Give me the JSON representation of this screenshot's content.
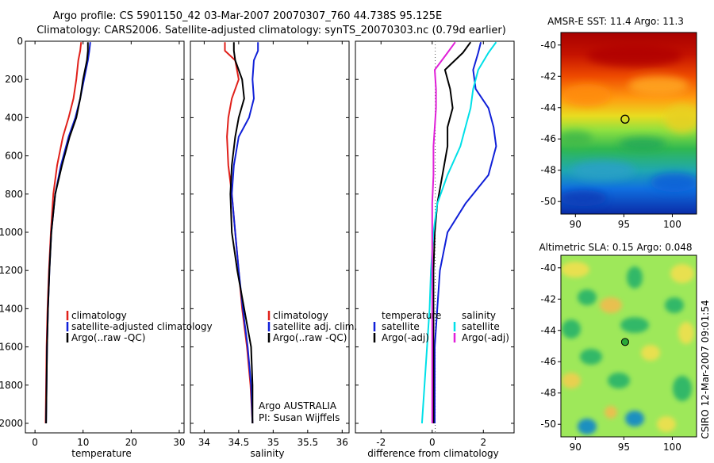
{
  "header": {
    "line1": "Argo profile: CS 5901150_42 03-Mar-2007 20070307_760 44.738S 95.125E",
    "line2": "Climatology: CARS2006. Satellite-adjusted climatology: synTS_20070303.nc (0.79d earlier)"
  },
  "footer": {
    "vertical_label": "CSIRO 12-Mar-2007 09:01:54"
  },
  "colors": {
    "red": "#e0201a",
    "blue": "#1020d8",
    "black": "#000000",
    "cyan": "#00e0e8",
    "magenta": "#e020d8"
  },
  "chart_data": [
    {
      "type": "line",
      "title": "",
      "xlabel": "temperature",
      "ylabel": "",
      "xlim": [
        -2,
        31
      ],
      "ylim": [
        2050,
        0
      ],
      "xticks": [
        0,
        10,
        20,
        30
      ],
      "yticks": [
        0,
        200,
        400,
        600,
        800,
        1000,
        1200,
        1400,
        1600,
        1800,
        2000
      ],
      "legend": [
        "climatology",
        "satellite-adjusted climatology",
        "Argo(..raw -QC)"
      ],
      "legend_colors": [
        "#e0201a",
        "#1020d8",
        "#000000"
      ],
      "legend_position": "lower-right",
      "annotation": [],
      "series": [
        {
          "color": "#e0201a",
          "x": [
            9.6,
            9.4,
            9.0,
            8.6,
            8.0,
            7.0,
            5.8,
            4.6,
            3.8,
            3.3,
            2.9,
            2.6,
            2.4,
            2.3,
            2.2
          ],
          "y": [
            5,
            50,
            100,
            200,
            300,
            400,
            500,
            650,
            800,
            1000,
            1200,
            1400,
            1600,
            1800,
            2000
          ]
        },
        {
          "color": "#1020d8",
          "x": [
            11.5,
            11.3,
            11.0,
            10.2,
            9.4,
            8.4,
            7.0,
            5.4,
            4.2,
            3.4,
            3.0,
            2.7,
            2.5,
            2.4,
            2.3
          ],
          "y": [
            5,
            50,
            100,
            200,
            300,
            400,
            500,
            650,
            800,
            1000,
            1200,
            1400,
            1600,
            1800,
            2000
          ]
        },
        {
          "color": "#000000",
          "x": [
            11.0,
            11.0,
            10.8,
            10.0,
            9.4,
            8.6,
            7.2,
            5.6,
            4.2,
            3.4,
            3.0,
            2.7,
            2.5,
            2.4,
            2.3
          ],
          "y": [
            5,
            50,
            100,
            200,
            300,
            400,
            500,
            650,
            800,
            1000,
            1200,
            1400,
            1600,
            1800,
            2000
          ]
        }
      ]
    },
    {
      "type": "line",
      "title": "",
      "xlabel": "salinity",
      "ylabel": "",
      "xlim": [
        33.8,
        36.1
      ],
      "ylim": [
        2050,
        0
      ],
      "xticks": [
        34,
        34.5,
        35,
        35.5,
        36
      ],
      "yticks": [
        0,
        200,
        400,
        600,
        800,
        1000,
        1200,
        1400,
        1600,
        1800,
        2000
      ],
      "legend": [
        "climatology",
        "satellite adj. clim.",
        "Argo(..raw -QC)"
      ],
      "legend_colors": [
        "#e0201a",
        "#1020d8",
        "#000000"
      ],
      "legend_position": "lower-right",
      "annotation": [
        "Argo AUSTRALIA",
        "PI: Susan Wijffels"
      ],
      "series": [
        {
          "color": "#e0201a",
          "x": [
            34.3,
            34.3,
            34.45,
            34.5,
            34.4,
            34.35,
            34.33,
            34.35,
            34.4,
            34.45,
            34.5,
            34.55,
            34.62,
            34.67,
            34.7
          ],
          "y": [
            5,
            50,
            100,
            200,
            300,
            400,
            500,
            650,
            800,
            1000,
            1200,
            1400,
            1600,
            1800,
            2000
          ]
        },
        {
          "color": "#1020d8",
          "x": [
            34.78,
            34.78,
            34.72,
            34.7,
            34.72,
            34.65,
            34.5,
            34.43,
            34.4,
            34.45,
            34.5,
            34.56,
            34.63,
            34.68,
            34.7
          ],
          "y": [
            5,
            50,
            100,
            200,
            300,
            400,
            500,
            650,
            800,
            1000,
            1200,
            1400,
            1600,
            1800,
            2000
          ]
        },
        {
          "color": "#000000",
          "x": [
            34.43,
            34.43,
            34.45,
            34.55,
            34.58,
            34.5,
            34.45,
            34.4,
            34.38,
            34.4,
            34.48,
            34.58,
            34.68,
            34.7,
            34.7
          ],
          "y": [
            5,
            50,
            100,
            200,
            300,
            400,
            500,
            650,
            800,
            1000,
            1200,
            1400,
            1600,
            1800,
            2000
          ]
        }
      ]
    },
    {
      "type": "line",
      "title": "",
      "xlabel": "difference from climatology",
      "ylabel": "",
      "xlim": [
        -3,
        3.2
      ],
      "ylim": [
        2050,
        0
      ],
      "xticks": [
        -2,
        0,
        2
      ],
      "yticks": [
        0,
        200,
        400,
        600,
        800,
        1000,
        1200,
        1400,
        1600,
        1800,
        2000
      ],
      "legend": [
        "temperature",
        "satellite",
        "Argo(-adj)",
        "salinity",
        "satellite",
        "Argo(-adj)"
      ],
      "legend_colors": [
        "",
        "#1020d8",
        "#000000",
        "",
        "#00e0e8",
        "#e020d8"
      ],
      "legend_position": "lower-center",
      "annotation": [],
      "series": [
        {
          "color": "#1020d8",
          "x": [
            1.9,
            1.8,
            1.6,
            1.7,
            2.2,
            2.4,
            2.5,
            2.2,
            1.3,
            0.6,
            0.3,
            0.2,
            0.1,
            0.1,
            0.1
          ],
          "y": [
            5,
            60,
            150,
            250,
            350,
            450,
            550,
            700,
            850,
            1000,
            1200,
            1400,
            1600,
            1800,
            2000
          ]
        },
        {
          "color": "#000000",
          "x": [
            1.5,
            1.2,
            0.5,
            0.7,
            0.8,
            0.6,
            0.6,
            0.4,
            0.2,
            0.1,
            0.05,
            0.05,
            0.05,
            0.05,
            0.05
          ],
          "y": [
            5,
            60,
            150,
            250,
            350,
            450,
            550,
            700,
            850,
            1000,
            1200,
            1400,
            1600,
            1800,
            2000
          ]
        },
        {
          "color": "#00e0e8",
          "x": [
            2.5,
            2.2,
            1.8,
            1.6,
            1.5,
            1.3,
            1.1,
            0.6,
            0.2,
            0.05,
            -0.05,
            -0.1,
            -0.2,
            -0.3,
            -0.4
          ],
          "y": [
            5,
            60,
            150,
            250,
            350,
            450,
            550,
            700,
            850,
            1000,
            1200,
            1400,
            1600,
            1800,
            2000
          ]
        },
        {
          "color": "#e020d8",
          "x": [
            0.9,
            0.6,
            0.1,
            0.15,
            0.15,
            0.1,
            0.05,
            0.05,
            0.0,
            0.0,
            0.0,
            0.0,
            0.0,
            0.0,
            0.0
          ],
          "y": [
            5,
            60,
            150,
            250,
            350,
            450,
            550,
            700,
            850,
            1000,
            1200,
            1400,
            1600,
            1800,
            2000
          ]
        }
      ]
    },
    {
      "type": "heatmap",
      "title": "AMSR-E SST: 11.4 Argo: 11.3",
      "xlabel": "",
      "ylabel": "",
      "xlim": [
        88.5,
        102.5
      ],
      "ylim": [
        -50.8,
        -39.2
      ],
      "xticks": [
        90,
        95,
        100
      ],
      "yticks": [
        -40,
        -42,
        -44,
        -46,
        -48,
        -50
      ],
      "colormap": "jet",
      "marker": {
        "lon": 95.125,
        "lat": -44.738,
        "style": "open-circle"
      }
    },
    {
      "type": "heatmap",
      "title": "Altimetric SLA: 0.15 Argo: 0.048",
      "xlabel": "",
      "ylabel": "",
      "xlim": [
        88.5,
        102.5
      ],
      "ylim": [
        -50.8,
        -39.2
      ],
      "xticks": [
        90,
        95,
        100
      ],
      "yticks": [
        -40,
        -42,
        -44,
        -46,
        -48,
        -50
      ],
      "colormap": "jet",
      "marker": {
        "lon": 95.125,
        "lat": -44.738,
        "style": "filled-circle-green"
      }
    }
  ]
}
